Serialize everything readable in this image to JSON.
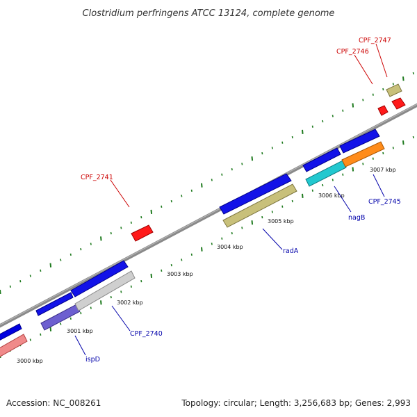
{
  "title": "Clostridium perfringens ATCC 13124, complete genome",
  "footer": {
    "accession": "Accession: NC_008261",
    "stats": "Topology: circular; Length: 3,256,683 bp; Genes: 2,993"
  },
  "colors": {
    "backbone": "#8a8a8a",
    "tick": "#1e7a1e",
    "label_red": "#cc0000",
    "label_blue": "#0000aa"
  },
  "kbp_labels": [
    "3000 kbp",
    "3001 kbp",
    "3002 kbp",
    "3003 kbp",
    "3004 kbp",
    "3005 kbp",
    "3006 kbp",
    "3007 kbp"
  ],
  "gene_labels": {
    "cpf2747": "CPF_2747",
    "cpf2746": "CPF_2746",
    "cpf2741": "CPF_2741",
    "nagb": "nagB",
    "cpf2745": "CPF_2745",
    "rada": "radA",
    "cpf2740": "CPF_2740",
    "ispd": "ispD"
  }
}
